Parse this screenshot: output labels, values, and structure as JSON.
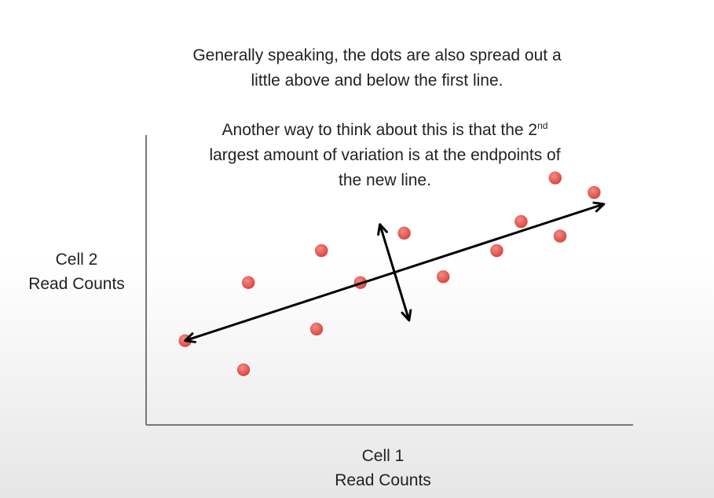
{
  "annotations": {
    "text_1": {
      "line1": "Generally speaking, the dots are also spread out a",
      "line2": "little above and below the first line."
    },
    "text_2": {
      "line1_pre": "Another way to think about this is that the 2",
      "line1_sup": "nd",
      "line2": "largest amount of variation is at the endpoints of",
      "line3": "the new line."
    }
  },
  "chart_data": {
    "type": "scatter",
    "xlabel_lines": [
      "Cell 1",
      "Read Counts"
    ],
    "ylabel_lines": [
      "Cell 2",
      "Read Counts"
    ],
    "xlim": [
      0,
      100
    ],
    "ylim": [
      0,
      100
    ],
    "grid": false,
    "points_color": "#e8524f",
    "series": [
      {
        "points": [
          {
            "x": 8,
            "y": 29
          },
          {
            "x": 20,
            "y": 19
          },
          {
            "x": 21,
            "y": 49
          },
          {
            "x": 35,
            "y": 33
          },
          {
            "x": 36,
            "y": 60
          },
          {
            "x": 44,
            "y": 49
          },
          {
            "x": 53,
            "y": 66
          },
          {
            "x": 61,
            "y": 51
          },
          {
            "x": 72,
            "y": 60
          },
          {
            "x": 77,
            "y": 70
          },
          {
            "x": 85,
            "y": 65
          },
          {
            "x": 84,
            "y": 85
          },
          {
            "x": 92,
            "y": 80
          }
        ]
      }
    ],
    "arrows": [
      {
        "role": "principal",
        "from": {
          "x": 8,
          "y": 29
        },
        "to": {
          "x": 94,
          "y": 76
        }
      },
      {
        "role": "secondary",
        "from": {
          "x": 48,
          "y": 69
        },
        "to": {
          "x": 54,
          "y": 36
        }
      }
    ],
    "arrow_color": "#000000"
  }
}
